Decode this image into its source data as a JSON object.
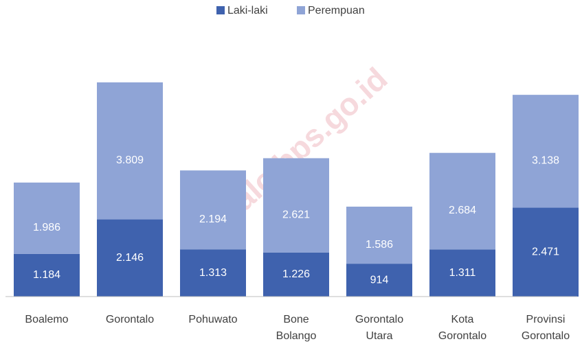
{
  "chart_data": {
    "type": "stacked-bar",
    "categories": [
      "Boalemo",
      "Gorontalo",
      "Pohuwato",
      "Bone Bolango",
      "Gorontalo Utara",
      "Kota Gorontalo",
      "Provinsi Gorontalo"
    ],
    "series": [
      {
        "name": "Laki-laki",
        "color": "#3f62ae",
        "values": [
          1184,
          2146,
          1313,
          1226,
          914,
          1311,
          2471
        ],
        "value_labels": [
          "1.184",
          "2.146",
          "1.313",
          "1.226",
          "914",
          "1.311",
          "2.471"
        ]
      },
      {
        "name": "Perempuan",
        "color": "#8fa4d6",
        "values": [
          1986,
          3809,
          2194,
          2621,
          1586,
          2684,
          3138
        ],
        "value_labels": [
          "1.986",
          "3.809",
          "2.194",
          "2.621",
          "1.586",
          "2.684",
          "3.138"
        ]
      }
    ],
    "legend": "top",
    "watermark": "rontalo.bps.go.id"
  }
}
